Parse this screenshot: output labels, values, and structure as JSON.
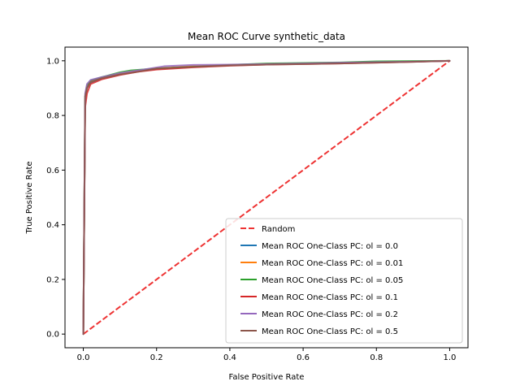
{
  "chart_data": {
    "type": "line",
    "title": "Mean ROC Curve synthetic_data",
    "xlabel": "False Positive Rate",
    "ylabel": "True Positive Rate",
    "xlim": [
      -0.05,
      1.05
    ],
    "ylim": [
      -0.05,
      1.05
    ],
    "x_ticks": [
      "0.0",
      "0.2",
      "0.4",
      "0.6",
      "0.8",
      "1.0"
    ],
    "y_ticks": [
      "0.0",
      "0.2",
      "0.4",
      "0.6",
      "0.8",
      "1.0"
    ],
    "grid": false,
    "legend_position": "lower-right",
    "series": [
      {
        "name": "Random",
        "color": "#ee3333",
        "dash": true,
        "points": [
          [
            0,
            0
          ],
          [
            1,
            1
          ]
        ]
      },
      {
        "name": "Mean ROC One-Class PC: ol = 0.0",
        "color": "#1f77b4",
        "dash": false,
        "points": [
          [
            0,
            0
          ],
          [
            0.005,
            0.85
          ],
          [
            0.01,
            0.9
          ],
          [
            0.02,
            0.92
          ],
          [
            0.05,
            0.935
          ],
          [
            0.1,
            0.95
          ],
          [
            0.15,
            0.962
          ],
          [
            0.2,
            0.97
          ],
          [
            0.3,
            0.978
          ],
          [
            0.4,
            0.983
          ],
          [
            0.5,
            0.987
          ],
          [
            0.6,
            0.99
          ],
          [
            0.7,
            0.992
          ],
          [
            0.8,
            0.995
          ],
          [
            0.9,
            0.997
          ],
          [
            1,
            1
          ]
        ]
      },
      {
        "name": "Mean ROC One-Class PC: ol = 0.01",
        "color": "#ff7f0e",
        "dash": false,
        "points": [
          [
            0,
            0
          ],
          [
            0.005,
            0.86
          ],
          [
            0.01,
            0.905
          ],
          [
            0.02,
            0.925
          ],
          [
            0.05,
            0.938
          ],
          [
            0.1,
            0.952
          ],
          [
            0.15,
            0.962
          ],
          [
            0.2,
            0.972
          ],
          [
            0.3,
            0.98
          ],
          [
            0.4,
            0.985
          ],
          [
            0.5,
            0.988
          ],
          [
            0.6,
            0.99
          ],
          [
            0.7,
            0.992
          ],
          [
            0.8,
            0.994
          ],
          [
            0.9,
            0.997
          ],
          [
            1,
            1
          ]
        ]
      },
      {
        "name": "Mean ROC One-Class PC: ol = 0.05",
        "color": "#2ca02c",
        "dash": false,
        "points": [
          [
            0,
            0
          ],
          [
            0.005,
            0.87
          ],
          [
            0.01,
            0.91
          ],
          [
            0.02,
            0.928
          ],
          [
            0.05,
            0.94
          ],
          [
            0.1,
            0.958
          ],
          [
            0.13,
            0.965
          ],
          [
            0.2,
            0.972
          ],
          [
            0.3,
            0.978
          ],
          [
            0.4,
            0.985
          ],
          [
            0.5,
            0.99
          ],
          [
            0.6,
            0.992
          ],
          [
            0.7,
            0.994
          ],
          [
            0.8,
            0.998
          ],
          [
            0.9,
            0.999
          ],
          [
            1,
            1
          ]
        ]
      },
      {
        "name": "Mean ROC One-Class PC: ol = 0.1",
        "color": "#d62728",
        "dash": false,
        "points": [
          [
            0,
            0
          ],
          [
            0.005,
            0.83
          ],
          [
            0.01,
            0.88
          ],
          [
            0.02,
            0.915
          ],
          [
            0.05,
            0.932
          ],
          [
            0.1,
            0.948
          ],
          [
            0.15,
            0.96
          ],
          [
            0.2,
            0.968
          ],
          [
            0.3,
            0.976
          ],
          [
            0.4,
            0.982
          ],
          [
            0.5,
            0.986
          ],
          [
            0.6,
            0.988
          ],
          [
            0.7,
            0.99
          ],
          [
            0.8,
            0.993
          ],
          [
            0.9,
            0.996
          ],
          [
            1,
            1
          ]
        ]
      },
      {
        "name": "Mean ROC One-Class PC: ol = 0.2",
        "color": "#9467bd",
        "dash": false,
        "points": [
          [
            0,
            0
          ],
          [
            0.005,
            0.88
          ],
          [
            0.01,
            0.915
          ],
          [
            0.02,
            0.93
          ],
          [
            0.05,
            0.94
          ],
          [
            0.1,
            0.955
          ],
          [
            0.15,
            0.965
          ],
          [
            0.22,
            0.98
          ],
          [
            0.3,
            0.985
          ],
          [
            0.4,
            0.986
          ],
          [
            0.5,
            0.988
          ],
          [
            0.6,
            0.99
          ],
          [
            0.7,
            0.993
          ],
          [
            0.8,
            0.995
          ],
          [
            0.9,
            0.997
          ],
          [
            1,
            1
          ]
        ]
      },
      {
        "name": "Mean ROC One-Class PC: ol = 0.5",
        "color": "#8c564b",
        "dash": false,
        "points": [
          [
            0,
            0
          ],
          [
            0.005,
            0.87
          ],
          [
            0.01,
            0.9
          ],
          [
            0.02,
            0.922
          ],
          [
            0.05,
            0.936
          ],
          [
            0.1,
            0.95
          ],
          [
            0.15,
            0.96
          ],
          [
            0.2,
            0.972
          ],
          [
            0.3,
            0.978
          ],
          [
            0.4,
            0.983
          ],
          [
            0.5,
            0.986
          ],
          [
            0.6,
            0.988
          ],
          [
            0.7,
            0.99
          ],
          [
            0.8,
            0.993
          ],
          [
            0.9,
            0.996
          ],
          [
            1,
            1
          ]
        ]
      }
    ]
  }
}
